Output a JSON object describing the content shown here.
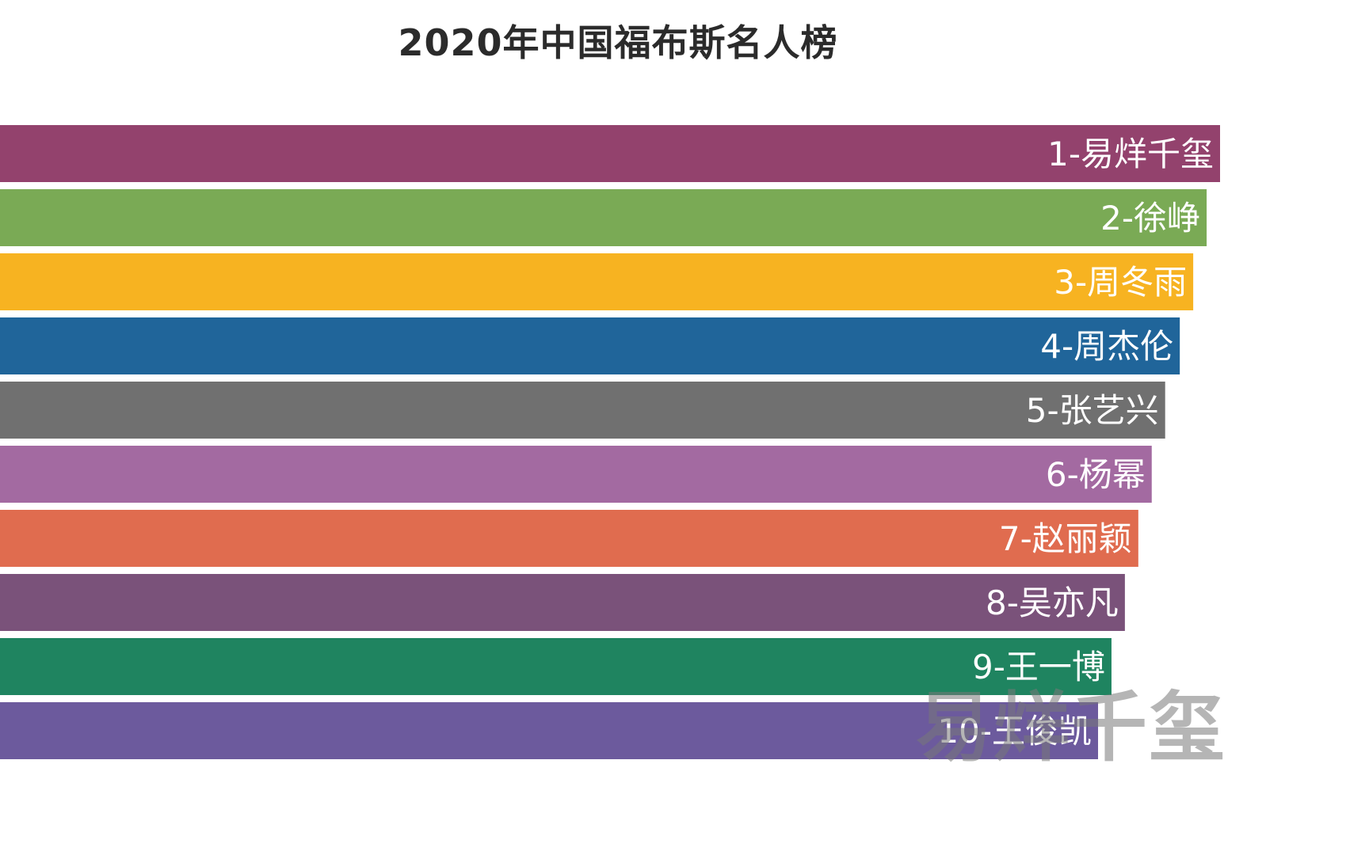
{
  "title": "2020年中国福布斯名人榜",
  "watermark": "易烊千玺",
  "chart_data": {
    "type": "bar",
    "orientation": "horizontal",
    "title": "2020年中国福布斯名人榜",
    "xlabel": "",
    "ylabel": "",
    "grid": false,
    "legend": "none",
    "xlim": [
      0,
      100
    ],
    "categories": [
      "1-易烊千玺",
      "2-徐峥",
      "3-周冬雨",
      "4-周杰伦",
      "5-张艺兴",
      "6-杨幂",
      "7-赵丽颖",
      "8-吴亦凡",
      "9-王一博",
      "10-王俊凯"
    ],
    "values": [
      100,
      98.9,
      97.8,
      96.7,
      95.5,
      94.4,
      93.3,
      92.2,
      91.1,
      90.0
    ],
    "colors": [
      "#93426d",
      "#7aaa55",
      "#f7b321",
      "#20659a",
      "#707070",
      "#a36aa1",
      "#e06c4f",
      "#7a527a",
      "#1f8460",
      "#6c5a9d"
    ]
  }
}
